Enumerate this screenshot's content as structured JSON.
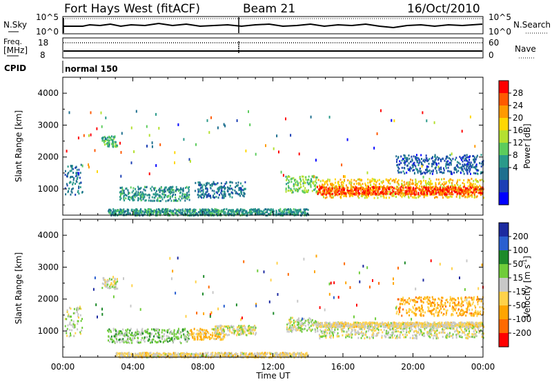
{
  "header": {
    "station": "Fort Hays West (fitACF)",
    "beam": "Beam 21",
    "date": "16/Oct/2010"
  },
  "top_panels": {
    "nsky_label": "N.Sky",
    "nsky_ticks": [
      "10^5",
      "10^0"
    ],
    "nsearch_label": "N.Search",
    "nsearch_ticks": [
      "10^5",
      "10^0"
    ],
    "freq_label": "Freq.",
    "freq_unit": "[MHz]",
    "freq_ticks": [
      "18",
      "8"
    ],
    "nave_label": "Nave",
    "nave_ticks": [
      "60",
      "0"
    ],
    "cpid_label": "CPID",
    "cpid_value": "normal 150"
  },
  "power_colorbar": {
    "label": "Power [dB]",
    "ticks": [
      "28",
      "24",
      "20",
      "16",
      "12",
      "8",
      "4"
    ],
    "colors": [
      "#ff0000",
      "#ff5a00",
      "#ff9a00",
      "#ffd700",
      "#b4e030",
      "#5ccc5c",
      "#2a9a8a",
      "#1e6f8f",
      "#1c3fb5",
      "#0000ff"
    ]
  },
  "velocity_colorbar": {
    "label": "Velocity [m s",
    "label_sup": "-1",
    "label_end": "]",
    "ticks": [
      "200",
      "100",
      "50",
      "15",
      "-15",
      "-50",
      "-100",
      "-200"
    ],
    "colors": [
      "#1c2aa0",
      "#2a5fd0",
      "#1d8a2a",
      "#6fcc3a",
      "#c8c8c8",
      "#ffd24a",
      "#ffa500",
      "#ff6a00",
      "#ff0000"
    ]
  },
  "x_axis": {
    "label": "Time UT",
    "ticks": [
      "00:00",
      "04:00",
      "08:00",
      "12:00",
      "16:00",
      "20:00",
      "00:00"
    ]
  },
  "chart_data": [
    {
      "type": "heatmap",
      "title": "Power",
      "ylabel": "Slant Range [km]",
      "xlabel": "",
      "xlim_hours": [
        0,
        24
      ],
      "ylim": [
        180,
        4500
      ],
      "yticks": [
        1000,
        2000,
        3000,
        4000
      ],
      "colorbar_range": [
        0,
        30
      ],
      "colorbar_unit": "dB",
      "scatter_regions": [
        {
          "t_start": 0.1,
          "t_end": 1.1,
          "r_low": 850,
          "r_high": 1800,
          "value": 8
        },
        {
          "t_start": 2.2,
          "t_end": 3.1,
          "r_low": 2350,
          "r_high": 2700,
          "value": 12
        },
        {
          "t_start": 3.2,
          "t_end": 7.2,
          "r_low": 650,
          "r_high": 1100,
          "value": 10
        },
        {
          "t_start": 7.5,
          "t_end": 10.4,
          "r_low": 750,
          "r_high": 1250,
          "value": 8
        },
        {
          "t_start": 12.7,
          "t_end": 14.5,
          "r_low": 900,
          "r_high": 1450,
          "value": 14
        },
        {
          "t_start": 14.5,
          "t_end": 24.0,
          "r_low": 750,
          "r_high": 1350,
          "value": 20
        },
        {
          "t_start": 14.5,
          "t_end": 24.0,
          "r_low": 850,
          "r_high": 1100,
          "value": 26
        },
        {
          "t_start": 2.5,
          "t_end": 14.0,
          "r_low": 200,
          "r_high": 400,
          "value": 10
        },
        {
          "t_start": 19.0,
          "t_end": 24.0,
          "r_low": 1500,
          "r_high": 2100,
          "value": 6
        }
      ]
    },
    {
      "type": "heatmap",
      "title": "Velocity",
      "ylabel": "Slant Range [km]",
      "xlabel": "Time UT",
      "xlim_hours": [
        0,
        24
      ],
      "ylim": [
        180,
        4500
      ],
      "yticks": [
        1000,
        2000,
        3000,
        4000
      ],
      "colorbar_range": [
        -250,
        250
      ],
      "colorbar_unit": "m s-1",
      "scatter_regions": [
        {
          "t_start": 0.1,
          "t_end": 1.1,
          "r_low": 850,
          "r_high": 1800,
          "value": 0
        },
        {
          "t_start": 2.2,
          "t_end": 3.1,
          "r_low": 2350,
          "r_high": 2700,
          "value": 0
        },
        {
          "t_start": 2.5,
          "t_end": 7.2,
          "r_low": 650,
          "r_high": 1100,
          "value": 40
        },
        {
          "t_start": 7.2,
          "t_end": 9.2,
          "r_low": 750,
          "r_high": 1100,
          "value": -60
        },
        {
          "t_start": 8.5,
          "t_end": 11.0,
          "r_low": 900,
          "r_high": 1200,
          "value": 0
        },
        {
          "t_start": 12.7,
          "t_end": 14.5,
          "r_low": 1000,
          "r_high": 1450,
          "value": 20
        },
        {
          "t_start": 14.5,
          "t_end": 24.0,
          "r_low": 800,
          "r_high": 1300,
          "value": 0
        },
        {
          "t_start": 14.5,
          "t_end": 24.0,
          "r_low": 1150,
          "r_high": 1300,
          "value": -30
        },
        {
          "t_start": 3.0,
          "t_end": 14.0,
          "r_low": 200,
          "r_high": 350,
          "value": -30
        },
        {
          "t_start": 19.0,
          "t_end": 24.0,
          "r_low": 1500,
          "r_high": 2100,
          "value": -90
        }
      ]
    }
  ]
}
